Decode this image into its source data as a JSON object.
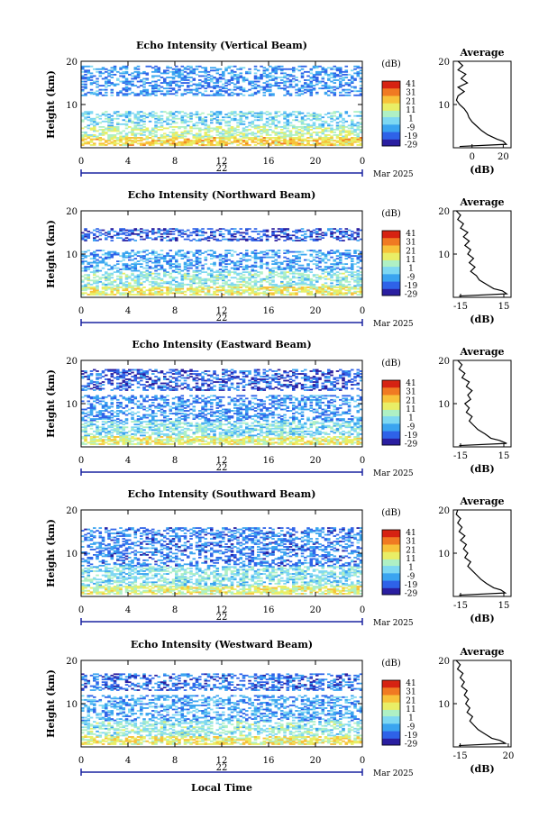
{
  "figure": {
    "date_label": "Mar 2025",
    "xlabel_bottom": "Local Time",
    "colorbar_unit": "(dB)",
    "colorbar_ticks": [
      "41",
      "31",
      "21",
      "11",
      "1",
      "-9",
      "-19",
      "-29"
    ],
    "colors": {
      "cmap": [
        "#2a1fa0",
        "#2f63e8",
        "#3aa4f0",
        "#7fd8f2",
        "#aff0c4",
        "#e9ee66",
        "#f7c23a",
        "#f07a22",
        "#d62312"
      ],
      "axis": "#000000",
      "day_axis": "#1a23a0"
    }
  },
  "chart_data": [
    {
      "type": "heatmap",
      "title": "Echo Intensity (Vertical Beam)",
      "xlabel": "Local Time",
      "ylabel": "Height (km)",
      "xlim": [
        0,
        24
      ],
      "ylim": [
        0,
        20
      ],
      "xticks": [
        "0",
        "4",
        "8",
        "12",
        "16",
        "20",
        "0"
      ],
      "yticks": [
        "10",
        "20"
      ],
      "day": "22",
      "date": "Mar 2025",
      "colorbar": {
        "unit": "(dB)",
        "range": [
          -29,
          41
        ]
      },
      "layers": [
        {
          "h0": 0.5,
          "h1": 2.5,
          "value": 18
        },
        {
          "h0": 2.5,
          "h1": 5,
          "value": 8
        },
        {
          "h0": 5,
          "h1": 8.5,
          "value": -2
        },
        {
          "h0": 12,
          "h1": 19,
          "value": -12
        }
      ],
      "average_profile": {
        "title": "Average",
        "xlabel": "(dB)",
        "xticks": [
          "0",
          "20"
        ],
        "xlim": [
          -12,
          25
        ],
        "height_km": [
          0.3,
          0.8,
          1.5,
          2,
          3,
          4,
          5,
          6,
          7,
          8,
          9,
          10,
          11,
          12,
          13,
          14,
          15,
          16,
          17,
          18,
          19,
          20
        ],
        "db": [
          -8,
          22,
          20,
          16,
          10,
          6,
          3,
          0,
          -2,
          -3,
          -5,
          -8,
          -10,
          -9,
          -5,
          -9,
          -3,
          -7,
          -4,
          -9,
          -6,
          -9
        ]
      }
    },
    {
      "type": "heatmap",
      "title": "Echo Intensity (Northward Beam)",
      "xlabel": "Local Time",
      "ylabel": "Height (km)",
      "xlim": [
        0,
        24
      ],
      "ylim": [
        0,
        20
      ],
      "xticks": [
        "0",
        "4",
        "8",
        "12",
        "16",
        "20",
        "0"
      ],
      "yticks": [
        "10",
        "20"
      ],
      "day": "22",
      "date": "Mar 2025",
      "colorbar": {
        "unit": "(dB)",
        "range": [
          -29,
          41
        ]
      },
      "layers": [
        {
          "h0": 0.5,
          "h1": 2.5,
          "value": 14
        },
        {
          "h0": 2.5,
          "h1": 6,
          "value": 2
        },
        {
          "h0": 6,
          "h1": 11,
          "value": -10
        },
        {
          "h0": 13,
          "h1": 16,
          "value": -18
        }
      ],
      "average_profile": {
        "title": "Average",
        "xlabel": "(dB)",
        "xticks": [
          "-15",
          "15"
        ],
        "xlim": [
          -20,
          20
        ],
        "height_km": [
          0.3,
          0.8,
          1.5,
          2,
          3,
          4,
          5,
          6,
          7,
          8,
          9,
          10,
          11,
          12,
          13,
          14,
          15,
          16,
          17,
          18,
          19,
          20
        ],
        "db": [
          -16,
          17,
          14,
          8,
          3,
          -2,
          -4,
          -8,
          -5,
          -9,
          -6,
          -10,
          -8,
          -12,
          -9,
          -13,
          -10,
          -15,
          -13,
          -17,
          -15,
          -18
        ]
      }
    },
    {
      "type": "heatmap",
      "title": "Echo Intensity (Eastward Beam)",
      "xlabel": "Local Time",
      "ylabel": "Height (km)",
      "xlim": [
        0,
        24
      ],
      "ylim": [
        0,
        20
      ],
      "xticks": [
        "0",
        "4",
        "8",
        "12",
        "16",
        "20",
        "0"
      ],
      "yticks": [
        "10",
        "20"
      ],
      "day": "22",
      "date": "Mar 2025",
      "colorbar": {
        "unit": "(dB)",
        "range": [
          -29,
          41
        ]
      },
      "layers": [
        {
          "h0": 0.5,
          "h1": 2.5,
          "value": 12
        },
        {
          "h0": 2.5,
          "h1": 6,
          "value": 0
        },
        {
          "h0": 6,
          "h1": 12,
          "value": -12
        },
        {
          "h0": 13,
          "h1": 18,
          "value": -18
        }
      ],
      "average_profile": {
        "title": "Average",
        "xlabel": "(dB)",
        "xticks": [
          "-15",
          "15"
        ],
        "xlim": [
          -20,
          20
        ],
        "height_km": [
          0.3,
          0.8,
          1.5,
          2,
          3,
          4,
          5,
          6,
          7,
          8,
          9,
          10,
          11,
          12,
          13,
          14,
          15,
          16,
          17,
          18,
          19,
          20
        ],
        "db": [
          -16,
          17,
          12,
          6,
          2,
          -3,
          -6,
          -9,
          -7,
          -11,
          -9,
          -12,
          -8,
          -10,
          -7,
          -11,
          -9,
          -14,
          -12,
          -16,
          -14,
          -17
        ]
      }
    },
    {
      "type": "heatmap",
      "title": "Echo Intensity (Southward Beam)",
      "xlabel": "Local Time",
      "ylabel": "Height (km)",
      "xlim": [
        0,
        24
      ],
      "ylim": [
        0,
        20
      ],
      "xticks": [
        "0",
        "4",
        "8",
        "12",
        "16",
        "20",
        "0"
      ],
      "yticks": [
        "10",
        "20"
      ],
      "day": "22",
      "date": "Mar 2025",
      "colorbar": {
        "unit": "(dB)",
        "range": [
          -29,
          41
        ]
      },
      "layers": [
        {
          "h0": 0.5,
          "h1": 2.5,
          "value": 12
        },
        {
          "h0": 2.5,
          "h1": 7,
          "value": 0
        },
        {
          "h0": 7,
          "h1": 16,
          "value": -14
        }
      ],
      "average_profile": {
        "title": "Average",
        "xlabel": "(dB)",
        "xticks": [
          "-15",
          "15"
        ],
        "xlim": [
          -20,
          20
        ],
        "height_km": [
          0.3,
          0.8,
          1.5,
          2,
          3,
          4,
          5,
          6,
          7,
          8,
          9,
          10,
          11,
          12,
          13,
          14,
          15,
          16,
          17,
          18,
          19,
          20
        ],
        "db": [
          -16,
          16,
          13,
          8,
          3,
          -1,
          -4,
          -7,
          -10,
          -8,
          -12,
          -10,
          -13,
          -11,
          -15,
          -12,
          -16,
          -14,
          -17,
          -15,
          -18,
          -17
        ]
      }
    },
    {
      "type": "heatmap",
      "title": "Echo Intensity (Westward Beam)",
      "xlabel": "Local Time",
      "ylabel": "Height (km)",
      "xlim": [
        0,
        24
      ],
      "ylim": [
        0,
        20
      ],
      "xticks": [
        "0",
        "4",
        "8",
        "12",
        "16",
        "20",
        "0"
      ],
      "yticks": [
        "10",
        "20"
      ],
      "day": "22",
      "date": "Mar 2025",
      "colorbar": {
        "unit": "(dB)",
        "range": [
          -29,
          41
        ]
      },
      "layers": [
        {
          "h0": 0.5,
          "h1": 2.5,
          "value": 14
        },
        {
          "h0": 2.5,
          "h1": 6,
          "value": 2
        },
        {
          "h0": 6,
          "h1": 12,
          "value": -10
        },
        {
          "h0": 13,
          "h1": 17,
          "value": -16
        }
      ],
      "average_profile": {
        "title": "Average",
        "xlabel": "(dB)",
        "xticks": [
          "-15",
          "20"
        ],
        "xlim": [
          -20,
          22
        ],
        "height_km": [
          0.3,
          0.8,
          1.5,
          2,
          3,
          4,
          5,
          6,
          7,
          8,
          9,
          10,
          11,
          12,
          13,
          14,
          15,
          16,
          17,
          18,
          19,
          20
        ],
        "db": [
          -16,
          18,
          14,
          8,
          3,
          -2,
          -5,
          -8,
          -6,
          -10,
          -8,
          -11,
          -9,
          -12,
          -10,
          -14,
          -12,
          -15,
          -13,
          -17,
          -15,
          -18
        ]
      }
    }
  ]
}
